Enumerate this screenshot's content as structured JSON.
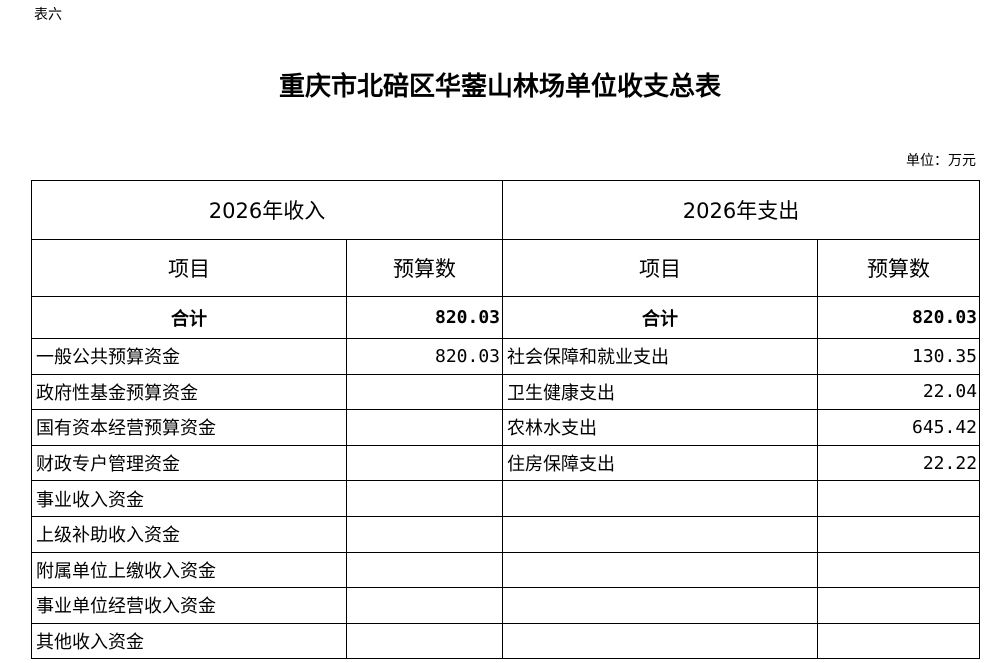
{
  "tag": "表六",
  "title": "重庆市北碚区华蓥山林场单位收支总表",
  "unit": "单位：万元",
  "income_header": "2026年收入",
  "expense_header": "2026年支出",
  "columns": {
    "item": "项目",
    "budget": "预算数"
  },
  "total": {
    "label": "合计",
    "income": "820.03",
    "expense": "820.03"
  },
  "rows": [
    {
      "income_item": "一般公共预算资金",
      "income_value": "820.03",
      "expense_item": "社会保障和就业支出",
      "expense_value": "130.35"
    },
    {
      "income_item": "政府性基金预算资金",
      "income_value": "",
      "expense_item": "卫生健康支出",
      "expense_value": "22.04"
    },
    {
      "income_item": "国有资本经营预算资金",
      "income_value": "",
      "expense_item": "农林水支出",
      "expense_value": "645.42"
    },
    {
      "income_item": "财政专户管理资金",
      "income_value": "",
      "expense_item": "住房保障支出",
      "expense_value": "22.22"
    },
    {
      "income_item": "事业收入资金",
      "income_value": "",
      "expense_item": "",
      "expense_value": ""
    },
    {
      "income_item": "上级补助收入资金",
      "income_value": "",
      "expense_item": "",
      "expense_value": ""
    },
    {
      "income_item": "附属单位上缴收入资金",
      "income_value": "",
      "expense_item": "",
      "expense_value": ""
    },
    {
      "income_item": "事业单位经营收入资金",
      "income_value": "",
      "expense_item": "",
      "expense_value": ""
    },
    {
      "income_item": "其他收入资金",
      "income_value": "",
      "expense_item": "",
      "expense_value": ""
    }
  ]
}
